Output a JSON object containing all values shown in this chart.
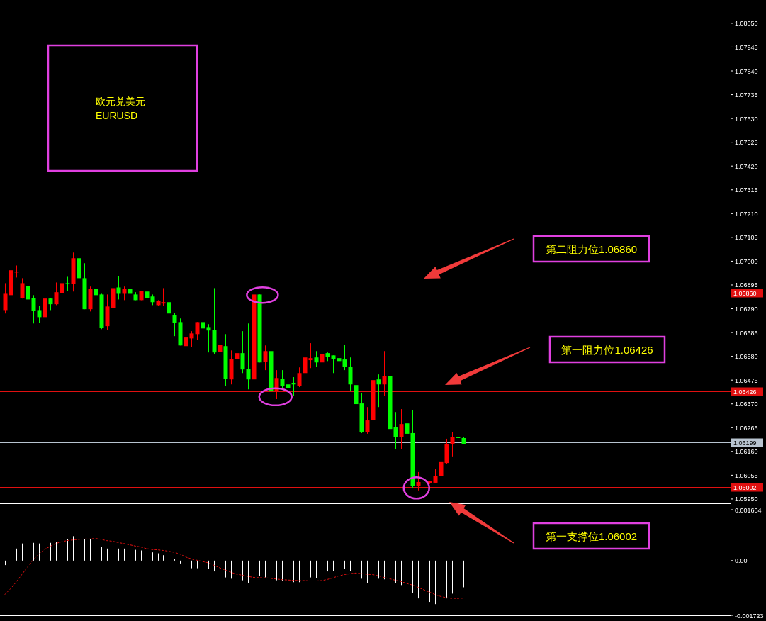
{
  "chart_data": [
    {
      "type": "candlestick",
      "categories": [
        null,
        null,
        null,
        null,
        null,
        null,
        null,
        null,
        null,
        null,
        null,
        null,
        null,
        null,
        null,
        null,
        null,
        null,
        null,
        null,
        null,
        null,
        null,
        null,
        null,
        null,
        null,
        null,
        null,
        null,
        null,
        null,
        null,
        null,
        null,
        null,
        null,
        null,
        null,
        null,
        null,
        null,
        null,
        null,
        null,
        null,
        null,
        null,
        null,
        null,
        null,
        null,
        null,
        null,
        null,
        null,
        null,
        null,
        null,
        null,
        null,
        null,
        null,
        null,
        null,
        null,
        null,
        null,
        null,
        null,
        null,
        null,
        null,
        null,
        null,
        null,
        null,
        null,
        null,
        null,
        null,
        null,
        null,
        null,
        null,
        null,
        null,
        null,
        null,
        null,
        null,
        null,
        null,
        null,
        null,
        null,
        null,
        null,
        null,
        null,
        null,
        null,
        null,
        null,
        null,
        null,
        null,
        null,
        null,
        null,
        null,
        null,
        null,
        null,
        null,
        null,
        null,
        null,
        null,
        null,
        null,
        null,
        null,
        null,
        null,
        null,
        null,
        null,
        null
      ],
      "ohlc": [
        [
          1.06784,
          1.06903,
          1.06769,
          1.06856
        ],
        [
          1.0685,
          1.06966,
          1.0685,
          1.0696
        ],
        [
          1.0695,
          1.06981,
          1.06928,
          1.06954
        ],
        [
          1.06838,
          1.06925,
          1.06835,
          1.06903
        ],
        [
          1.06891,
          1.06925,
          1.06819,
          1.06831
        ],
        [
          1.06838,
          1.0685,
          1.06725,
          1.06781
        ],
        [
          1.06784,
          1.06803,
          1.06728,
          1.06753
        ],
        [
          1.06753,
          1.06863,
          1.06747,
          1.06835
        ],
        [
          1.06835,
          1.06838,
          1.06784,
          1.0681
        ],
        [
          1.0681,
          1.06906,
          1.06806,
          1.06863
        ],
        [
          1.06859,
          1.06928,
          1.06831,
          1.06903
        ],
        [
          1.06903,
          1.06931,
          1.06869,
          1.069
        ],
        [
          1.069,
          1.07038,
          1.06866,
          1.07013
        ],
        [
          1.07013,
          1.07044,
          1.06847,
          1.06925
        ],
        [
          1.06925,
          1.06991,
          1.06788,
          1.06788
        ],
        [
          1.06788,
          1.06888,
          1.06778,
          1.06878
        ],
        [
          1.06878,
          1.06922,
          1.06825,
          1.0685
        ],
        [
          1.06853,
          1.06856,
          1.067,
          1.06706
        ],
        [
          1.06713,
          1.06853,
          1.06697,
          1.068
        ],
        [
          1.06794,
          1.06909,
          1.06778,
          1.06881
        ],
        [
          1.06884,
          1.06934,
          1.06831,
          1.06856
        ],
        [
          1.06856,
          1.06888,
          1.06828,
          1.06878
        ],
        [
          1.06878,
          1.06903,
          1.06835,
          1.06856
        ],
        [
          1.06853,
          1.06863,
          1.06828,
          1.06828
        ],
        [
          1.06828,
          1.06869,
          1.06828,
          1.06869
        ],
        [
          1.06866,
          1.06869,
          1.06838,
          1.06838
        ],
        [
          1.06844,
          1.06853,
          1.06806,
          1.06819
        ],
        [
          1.06806,
          1.06828,
          1.06803,
          1.06825
        ],
        [
          1.06813,
          1.06881,
          1.06803,
          1.06819
        ],
        [
          1.06819,
          1.06847,
          1.06763,
          1.06769
        ],
        [
          1.06763,
          1.06772,
          1.06669,
          1.06728
        ],
        [
          1.06731,
          1.06747,
          1.06628,
          1.06628
        ],
        [
          1.06625,
          1.06663,
          1.06616,
          1.06663
        ],
        [
          1.06659,
          1.06691,
          1.06622,
          1.06681
        ],
        [
          1.06678,
          1.06731,
          1.06653,
          1.06731
        ],
        [
          1.06731,
          1.06731,
          1.06663,
          1.06703
        ],
        [
          1.06709,
          1.06722,
          1.06597,
          1.06694
        ],
        [
          1.06697,
          1.06881,
          1.06591,
          1.06597
        ],
        [
          1.066,
          1.06747,
          1.06425,
          1.06631
        ],
        [
          1.06625,
          1.06678,
          1.0645,
          1.06481
        ],
        [
          1.06478,
          1.06606,
          1.06456,
          1.06569
        ],
        [
          1.06569,
          1.06644,
          1.06466,
          1.06594
        ],
        [
          1.06594,
          1.06691,
          1.06506,
          1.06522
        ],
        [
          1.06525,
          1.06725,
          1.06434,
          1.06478
        ],
        [
          1.06478,
          1.06981,
          1.06456,
          1.06853
        ],
        [
          1.06853,
          1.06853,
          1.06553,
          1.06553
        ],
        [
          1.06556,
          1.06628,
          1.06519,
          1.06603
        ],
        [
          1.06603,
          1.06603,
          1.06372,
          1.06425
        ],
        [
          1.06425,
          1.06519,
          1.06391,
          1.06484
        ],
        [
          1.06481,
          1.06519,
          1.06434,
          1.0645
        ],
        [
          1.06456,
          1.06481,
          1.06428,
          1.06438
        ],
        [
          1.06463,
          1.06488,
          1.06406,
          1.06456
        ],
        [
          1.0645,
          1.06531,
          1.06444,
          1.06506
        ],
        [
          1.06506,
          1.06638,
          1.06478,
          1.06575
        ],
        [
          1.06563,
          1.06638,
          1.06528,
          1.06572
        ],
        [
          1.06575,
          1.06603,
          1.06534,
          1.06553
        ],
        [
          1.06553,
          1.06622,
          1.06544,
          1.06591
        ],
        [
          1.06594,
          1.06597,
          1.06559,
          1.06578
        ],
        [
          1.06584,
          1.06584,
          1.06506,
          1.06569
        ],
        [
          1.06572,
          1.06603,
          1.06544,
          1.06559
        ],
        [
          1.06566,
          1.06631,
          1.06519,
          1.06534
        ],
        [
          1.06534,
          1.06575,
          1.06425,
          1.06456
        ],
        [
          1.06453,
          1.06503,
          1.0635,
          1.06369
        ],
        [
          1.06372,
          1.06419,
          1.06241,
          1.06244
        ],
        [
          1.06244,
          1.06356,
          1.06238,
          1.06297
        ],
        [
          1.063,
          1.06475,
          1.0625,
          1.06475
        ],
        [
          1.06478,
          1.065,
          1.06356,
          1.06456
        ],
        [
          1.06456,
          1.06603,
          1.06406,
          1.06494
        ],
        [
          1.06494,
          1.06572,
          1.06253,
          1.06259
        ],
        [
          1.06266,
          1.06334,
          1.06169,
          1.06225
        ],
        [
          1.06225,
          1.06347,
          1.06172,
          1.06281
        ],
        [
          1.06284,
          1.06356,
          1.06222,
          1.06238
        ],
        [
          1.06241,
          1.06341,
          1.05997,
          1.06006
        ],
        [
          1.06006,
          1.06069,
          1.05988,
          1.06025
        ],
        [
          1.06022,
          1.06047,
          1.06006,
          1.06019
        ],
        [
          1.06019,
          1.06031,
          1.06016,
          1.06028
        ],
        [
          1.06022,
          1.06081,
          1.06022,
          1.0605
        ],
        [
          1.0605,
          1.06113,
          1.0605,
          1.06113
        ],
        [
          1.06109,
          1.06216,
          1.06106,
          1.06194
        ],
        [
          1.06194,
          1.06244,
          1.06138,
          1.06225
        ],
        [
          1.06225,
          1.06244,
          1.06206,
          1.06219
        ],
        [
          1.06219,
          1.06222,
          1.06191,
          1.06194
        ],
        null,
        null,
        null,
        null,
        null,
        null,
        null,
        null,
        null,
        null,
        null,
        null,
        null,
        null,
        null,
        null,
        null,
        null,
        null,
        null,
        null,
        null,
        null,
        null,
        null,
        null,
        null,
        null,
        null,
        null,
        null,
        null,
        null,
        null,
        null,
        null,
        null,
        null,
        null,
        null,
        null,
        null,
        null,
        null,
        null,
        null,
        null
      ],
      "colors": [
        "#ff0000",
        "#ff0000",
        "#ff0000",
        "#ff0000",
        "#00ff00",
        "#00ff00",
        "#00ff00",
        "#ff0000",
        "#00ff00",
        "#ff0000",
        "#ff0000",
        "#00ff00",
        "#ff0000",
        "#00ff00",
        "#00ff00",
        "#ff0000",
        "#00ff00",
        "#00ff00",
        "#ff0000",
        "#ff0000",
        "#00ff00",
        "#ff0000",
        "#00ff00",
        "#00ff00",
        "#ff0000",
        "#00ff00",
        "#00ff00",
        "#ff0000",
        "#ff0000",
        "#00ff00",
        "#00ff00",
        "#00ff00",
        "#ff0000",
        "#ff0000",
        "#ff0000",
        "#00ff00",
        "#00ff00",
        "#00ff00",
        "#ff0000",
        "#00ff00",
        "#ff0000",
        "#ff0000",
        "#00ff00",
        "#00ff00",
        "#ff0000",
        "#00ff00",
        "#ff0000",
        "#00ff00",
        "#ff0000",
        "#00ff00",
        "#00ff00",
        "#00ff00",
        "#ff0000",
        "#ff0000",
        "#ff0000",
        "#00ff00",
        "#ff0000",
        "#00ff00",
        "#00ff00",
        "#00ff00",
        "#00ff00",
        "#00ff00",
        "#00ff00",
        "#00ff00",
        "#ff0000",
        "#ff0000",
        "#00ff00",
        "#ff0000",
        "#00ff00",
        "#00ff00",
        "#ff0000",
        "#00ff00",
        "#00ff00",
        "#ff0000",
        "#00ff00",
        "#ff0000",
        "#ff0000",
        "#ff0000",
        "#ff0000",
        "#ff0000",
        "#00ff00",
        "#00ff00",
        null,
        null,
        null,
        null,
        null,
        null,
        null,
        null,
        null,
        null,
        null,
        null,
        null,
        null,
        null,
        null,
        null,
        null,
        null,
        null,
        null,
        null,
        null,
        null,
        null,
        null,
        null,
        null,
        null,
        null,
        null,
        null,
        null,
        null,
        null,
        null,
        null,
        null,
        null,
        null,
        null,
        null,
        null,
        null,
        null,
        null,
        null
      ],
      "ylim": [
        1.05931,
        1.08153
      ],
      "yticks": [
        {
          "value": 1.0595,
          "label": "1.05950"
        },
        {
          "value": 1.06055,
          "label": "1.06055"
        },
        {
          "value": 1.0616,
          "label": "1.06160"
        },
        {
          "value": 1.06265,
          "label": "1.06265"
        },
        {
          "value": 1.0637,
          "label": "1.06370"
        },
        {
          "value": 1.06475,
          "label": "1.06475"
        },
        {
          "value": 1.0658,
          "label": "1.06580"
        },
        {
          "value": 1.06685,
          "label": "1.06685"
        },
        {
          "value": 1.0679,
          "label": "1.06790"
        },
        {
          "value": 1.06895,
          "label": "1.06895"
        },
        {
          "value": 1.07,
          "label": "1.07000"
        },
        {
          "value": 1.07105,
          "label": "1.07105"
        },
        {
          "value": 1.0721,
          "label": "1.07210"
        },
        {
          "value": 1.07315,
          "label": "1.07315"
        },
        {
          "value": 1.0742,
          "label": "1.07420"
        },
        {
          "value": 1.07525,
          "label": "1.07525"
        },
        {
          "value": 1.0763,
          "label": "1.07630"
        },
        {
          "value": 1.07735,
          "label": "1.07735"
        },
        {
          "value": 1.0784,
          "label": "1.07840"
        },
        {
          "value": 1.07945,
          "label": "1.07945"
        },
        {
          "value": 1.0805,
          "label": "1.08050"
        }
      ],
      "tick_labels": "y",
      "ref_lines": [
        {
          "axis": "y",
          "value": 1.0686,
          "label": "1.06860",
          "color": "#e01010"
        },
        {
          "axis": "y",
          "value": 1.06426,
          "label": "1.06426",
          "color": "#e01010"
        },
        {
          "axis": "y",
          "value": 1.06199,
          "label": "1.06199",
          "color": "#b8c4d0"
        },
        {
          "axis": "y",
          "value": 1.06002,
          "label": "1.06002",
          "color": "#e01010"
        }
      ],
      "annotations": [
        "欧元兑美元\nEURUSD",
        "第二阻力位1.06860",
        "第一阻力位1.06426",
        "第一支撑位1.06002"
      ]
    },
    {
      "type": "bar",
      "categories": [
        null,
        null,
        null,
        null,
        null,
        null,
        null,
        null,
        null,
        null,
        null,
        null,
        null,
        null,
        null,
        null,
        null,
        null,
        null,
        null,
        null,
        null,
        null,
        null,
        null,
        null,
        null,
        null,
        null,
        null,
        null,
        null,
        null,
        null,
        null,
        null,
        null,
        null,
        null,
        null,
        null,
        null,
        null,
        null,
        null,
        null,
        null,
        null,
        null,
        null,
        null,
        null,
        null,
        null,
        null,
        null,
        null,
        null,
        null,
        null,
        null,
        null,
        null,
        null,
        null,
        null,
        null,
        null,
        null,
        null,
        null,
        null,
        null,
        null,
        null,
        null,
        null,
        null,
        null,
        null,
        null,
        null,
        null,
        null,
        null,
        null,
        null,
        null,
        null,
        null,
        null,
        null,
        null,
        null,
        null,
        null,
        null,
        null,
        null,
        null,
        null,
        null,
        null,
        null,
        null,
        null,
        null,
        null,
        null,
        null,
        null,
        null,
        null,
        null,
        null,
        null,
        null,
        null,
        null,
        null,
        null,
        null,
        null,
        null,
        null,
        null,
        null,
        null,
        null
      ],
      "series": [
        {
          "type": "bar",
          "color": "#ffffff",
          "values": [
            -0.00014,
            0.00015,
            0.00038,
            0.00054,
            0.00056,
            0.00056,
            0.00054,
            0.00056,
            0.00056,
            0.00059,
            0.00065,
            0.00068,
            0.00077,
            0.00079,
            0.00068,
            0.00068,
            0.00061,
            0.00044,
            0.00038,
            0.0004,
            0.00038,
            0.00038,
            0.00035,
            0.00034,
            0.00032,
            0.00029,
            0.00026,
            0.00023,
            0.00017,
            0.00011,
            4e-05,
            -9e-05,
            -0.00016,
            -0.00024,
            -0.00024,
            -0.00024,
            -0.00026,
            -0.00034,
            -0.00041,
            -0.00053,
            -0.00057,
            -0.00057,
            -0.00062,
            -0.00071,
            -0.00055,
            -0.00048,
            -0.00053,
            -0.00055,
            -0.00062,
            -0.00064,
            -0.00071,
            -0.00068,
            -0.00068,
            -0.0006,
            -0.00053,
            -0.00055,
            -0.00041,
            -0.00034,
            -0.00032,
            -0.00025,
            -0.00027,
            -0.00032,
            -0.00044,
            -0.00057,
            -0.00071,
            -0.00064,
            -0.00057,
            -0.00059,
            -0.00066,
            -0.00071,
            -0.00077,
            -0.00083,
            -0.00102,
            -0.00119,
            -0.00128,
            -0.0013,
            -0.00137,
            -0.00125,
            -0.00119,
            -0.00104,
            -0.00093,
            -0.00084,
            null,
            null,
            null,
            null,
            null,
            null,
            null,
            null,
            null,
            null,
            null,
            null,
            null,
            null,
            null,
            null,
            null,
            null,
            null,
            null,
            null,
            null,
            null,
            null,
            null,
            null,
            null,
            null,
            null,
            null,
            null,
            null,
            null,
            null,
            null,
            null,
            null,
            null,
            null,
            null,
            null,
            null,
            null,
            null,
            null,
            null,
            null
          ]
        },
        {
          "type": "line",
          "color": "#e01010",
          "values": [
            -0.00107,
            -0.00089,
            -0.00068,
            -0.00044,
            -0.00021,
            2e-05,
            0.0002,
            0.00035,
            0.00045,
            0.00054,
            0.00059,
            0.00063,
            0.00065,
            0.00067,
            0.00068,
            0.00068,
            0.0007,
            0.00067,
            0.00063,
            0.00061,
            0.00057,
            0.00054,
            0.0005,
            0.00046,
            0.00043,
            0.00038,
            0.00035,
            0.00034,
            0.00032,
            0.00029,
            0.00026,
            0.0002,
            0.00011,
            5e-05,
            1e-05,
            -3e-05,
            -7e-05,
            -0.00015,
            -0.00023,
            -0.0003,
            -0.00037,
            -0.00043,
            -0.00046,
            -0.0005,
            -0.00053,
            -0.00054,
            -0.00054,
            -0.00056,
            -0.00058,
            -0.0006,
            -0.00061,
            -0.00062,
            -0.00063,
            -0.00063,
            -0.00064,
            -0.00064,
            -0.00063,
            -0.00059,
            -0.00054,
            -0.00048,
            -0.00044,
            -0.00041,
            -0.00039,
            -0.00041,
            -0.00043,
            -0.00044,
            -0.00048,
            -0.00053,
            -0.00057,
            -0.00062,
            -0.00066,
            -0.00072,
            -0.00077,
            -0.00084,
            -0.00092,
            -0.00099,
            -0.00107,
            -0.00113,
            -0.00117,
            -0.00119,
            -0.00119,
            -0.00118,
            null,
            null,
            null,
            null,
            null,
            null,
            null,
            null,
            null,
            null,
            null,
            null,
            null,
            null,
            null,
            null,
            null,
            null,
            null,
            null,
            null,
            null,
            null,
            null,
            null,
            null,
            null,
            null,
            null,
            null,
            null,
            null,
            null,
            null,
            null,
            null,
            null,
            null,
            null,
            null,
            null,
            null,
            null,
            null,
            null,
            null,
            null
          ]
        }
      ],
      "line_style": "dashed",
      "ylim": [
        -0.001723,
        0.001604
      ],
      "yticks": [
        {
          "value": 0.001604,
          "label": "0.001604"
        },
        {
          "value": 0,
          "label": "0.00"
        },
        {
          "value": -0.001723,
          "label": "-0.001723"
        }
      ],
      "tick_labels": "y"
    }
  ]
}
